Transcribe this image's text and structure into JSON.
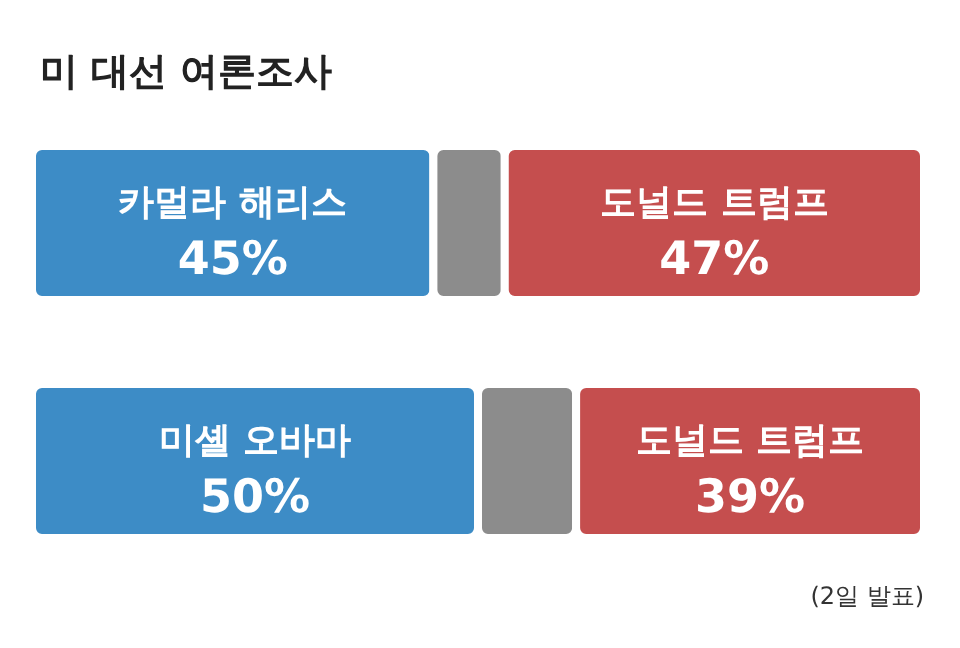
{
  "chart_data": [
    {
      "type": "bar",
      "title": "미 대선 여론조사",
      "orientation": "horizontal",
      "stacked": true,
      "xlim": [
        0,
        100
      ],
      "categories": [
        null
      ],
      "series": [
        {
          "name": "카멀라 해리스",
          "color": "#3d8cc6",
          "values": [
            45
          ],
          "value_labels": [
            "45%"
          ]
        },
        {
          "color": "#8c8c8c",
          "values": [
            8
          ]
        },
        {
          "name": "도널드 트럼프",
          "color": "#c54e4e",
          "values": [
            47
          ],
          "value_labels": [
            "47%"
          ]
        }
      ]
    },
    {
      "type": "bar",
      "orientation": "horizontal",
      "stacked": true,
      "xlim": [
        0,
        100
      ],
      "categories": [
        null
      ],
      "annotations": [
        "(2일 발표)"
      ],
      "series": [
        {
          "name": "미셸 오바마",
          "color": "#3d8cc6",
          "values": [
            50
          ],
          "value_labels": [
            "50%"
          ]
        },
        {
          "color": "#8c8c8c",
          "values": [
            11
          ]
        },
        {
          "name": "도널드 트럼프",
          "color": "#c54e4e",
          "values": [
            39
          ],
          "value_labels": [
            "39%"
          ]
        }
      ]
    }
  ]
}
